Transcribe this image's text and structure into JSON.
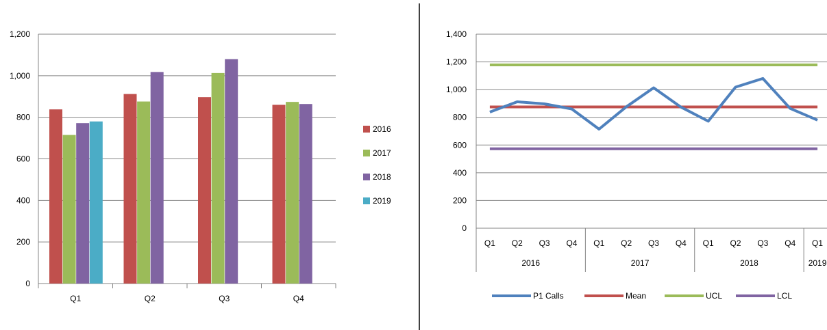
{
  "colors": {
    "s2016": "#C0504D",
    "s2017": "#9BBB59",
    "s2018": "#8064A2",
    "s2019": "#4BACC6",
    "p1calls": "#4F81BD",
    "mean": "#C0504D",
    "ucl": "#9BBB59",
    "lcl": "#8064A2",
    "gridline": "#868686",
    "divider": "#000000"
  },
  "chart_data": [
    {
      "type": "bar",
      "title": "",
      "xlabel": "",
      "ylabel": "",
      "categories": [
        "Q1",
        "Q2",
        "Q3",
        "Q4"
      ],
      "ylim": [
        0,
        1200
      ],
      "yticks": [
        0,
        200,
        400,
        600,
        800,
        1000,
        1200
      ],
      "ytick_labels": [
        "0",
        "200",
        "400",
        "600",
        "800",
        "1,000",
        "1,200"
      ],
      "grid": true,
      "legend_position": "right",
      "series": [
        {
          "name": "2016",
          "values": [
            838,
            912,
            897,
            860
          ]
        },
        {
          "name": "2017",
          "values": [
            715,
            876,
            1013,
            874
          ]
        },
        {
          "name": "2018",
          "values": [
            772,
            1018,
            1080,
            864
          ]
        },
        {
          "name": "2019",
          "values": [
            780,
            null,
            null,
            null
          ]
        }
      ]
    },
    {
      "type": "line",
      "title": "",
      "xlabel": "",
      "ylabel": "",
      "x": [
        "Q1",
        "Q2",
        "Q3",
        "Q4",
        "Q1",
        "Q2",
        "Q3",
        "Q4",
        "Q1",
        "Q2",
        "Q3",
        "Q4",
        "Q1"
      ],
      "x_groups": [
        {
          "label": "2016",
          "count": 4
        },
        {
          "label": "2017",
          "count": 4
        },
        {
          "label": "2018",
          "count": 4
        },
        {
          "label": "2019",
          "count": 1
        }
      ],
      "ylim": [
        0,
        1400
      ],
      "yticks": [
        0,
        200,
        400,
        600,
        800,
        1000,
        1200,
        1400
      ],
      "ytick_labels": [
        "0",
        "200",
        "400",
        "600",
        "800",
        "1,000",
        "1,200",
        "1,400"
      ],
      "grid": true,
      "legend_position": "bottom",
      "series": [
        {
          "name": "P1 Calls",
          "values": [
            838,
            912,
            897,
            860,
            715,
            876,
            1013,
            874,
            772,
            1018,
            1080,
            864,
            780
          ]
        },
        {
          "name": "Mean",
          "values": [
            875,
            875,
            875,
            875,
            875,
            875,
            875,
            875,
            875,
            875,
            875,
            875,
            875
          ]
        },
        {
          "name": "UCL",
          "values": [
            1178,
            1178,
            1178,
            1178,
            1178,
            1178,
            1178,
            1178,
            1178,
            1178,
            1178,
            1178,
            1178
          ]
        },
        {
          "name": "LCL",
          "values": [
            573,
            573,
            573,
            573,
            573,
            573,
            573,
            573,
            573,
            573,
            573,
            573,
            573
          ]
        }
      ]
    }
  ]
}
